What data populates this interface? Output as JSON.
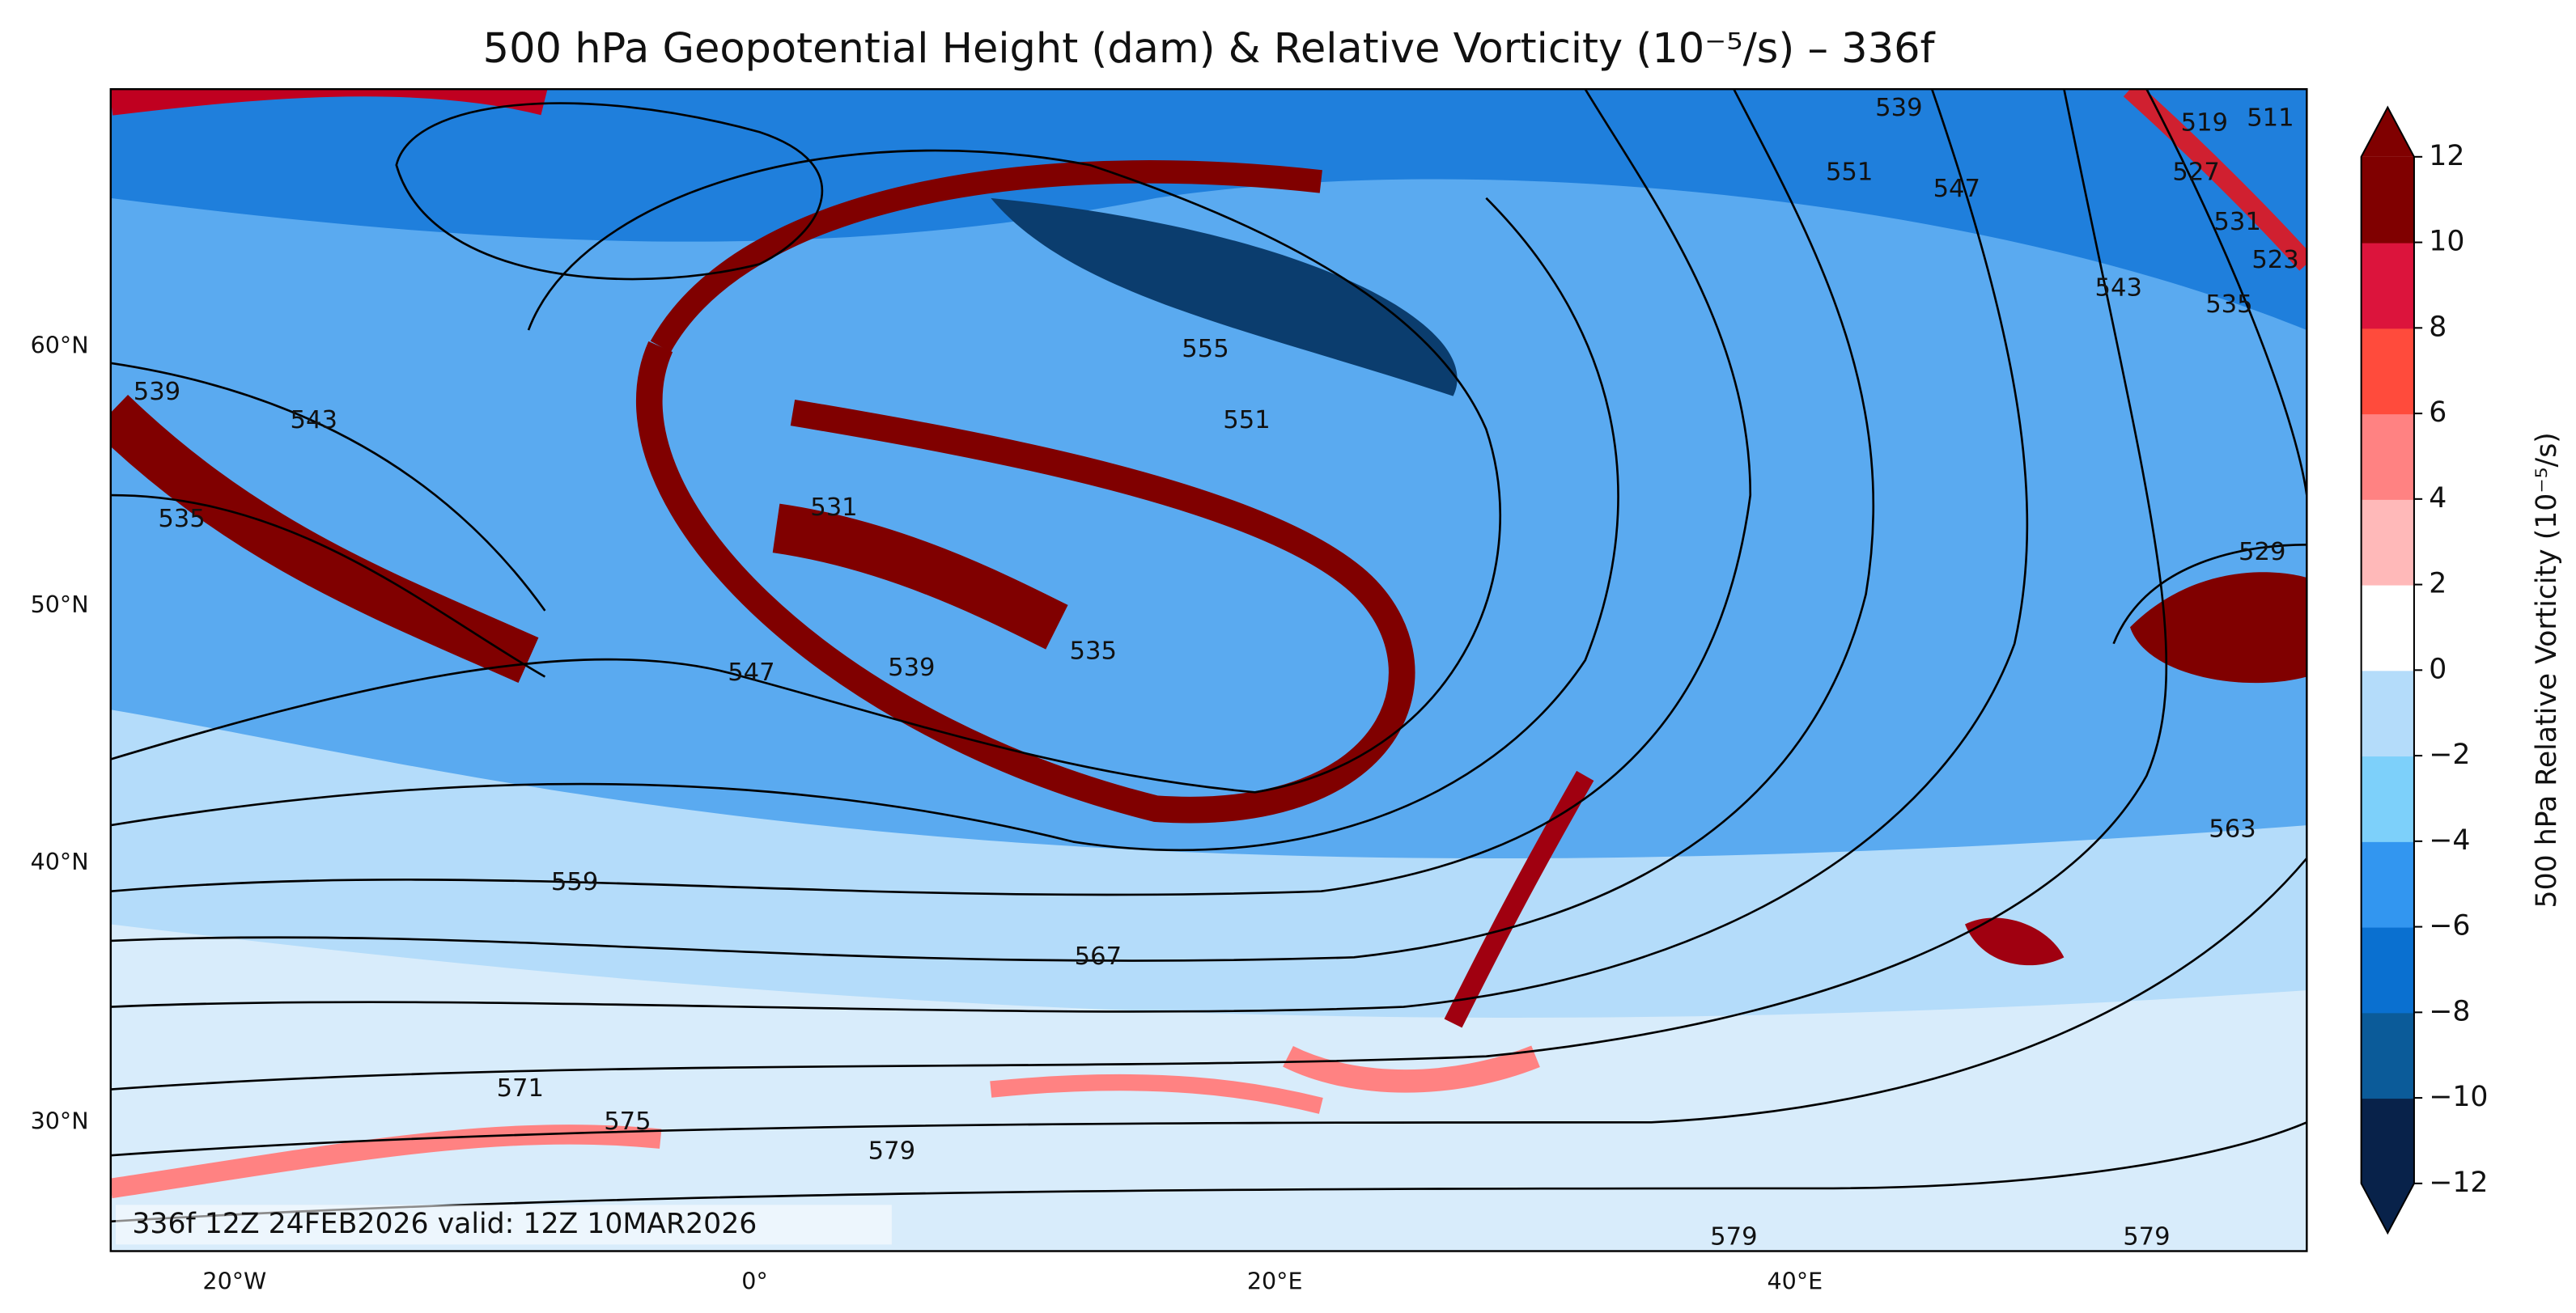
{
  "title": "500 hPa Geopotential Height (dam) & Relative Vorticity (10⁻⁵/s) – 336f",
  "footer": "336f 12Z 24FEB2026 valid: 12Z 10MAR2026",
  "map": {
    "lat_labels": [
      "60°N",
      "50°N",
      "40°N",
      "30°N"
    ],
    "lon_labels": [
      "20°W",
      "0°",
      "20°E",
      "40°E"
    ],
    "contour_labels": [
      "539",
      "547",
      "543",
      "535",
      "551",
      "555",
      "551",
      "531",
      "535",
      "539",
      "543",
      "547",
      "539",
      "535",
      "559",
      "567",
      "571",
      "575",
      "579",
      "563",
      "579",
      "579",
      "529",
      "519",
      "511",
      "523",
      "527",
      "531"
    ]
  },
  "colorbar": {
    "label": "500 hPa Relative Vorticity (10⁻⁵/s)",
    "ticks": [
      {
        "value": -12,
        "label": "−12"
      },
      {
        "value": -10,
        "label": "−10"
      },
      {
        "value": -8,
        "label": "−8"
      },
      {
        "value": -6,
        "label": "−6"
      },
      {
        "value": -4,
        "label": "−4"
      },
      {
        "value": -2,
        "label": "−2"
      },
      0,
      2,
      4,
      6,
      8,
      10,
      12
    ],
    "colors": [
      "#08224a",
      "#0b5b99",
      "#0a70d0",
      "#3296f0",
      "#7dd0fa",
      "#b4dcfa",
      "#ffffff",
      "#ffb9b9",
      "#ff8282",
      "#ff4b3c",
      "#dc143c",
      "#800000"
    ]
  }
}
